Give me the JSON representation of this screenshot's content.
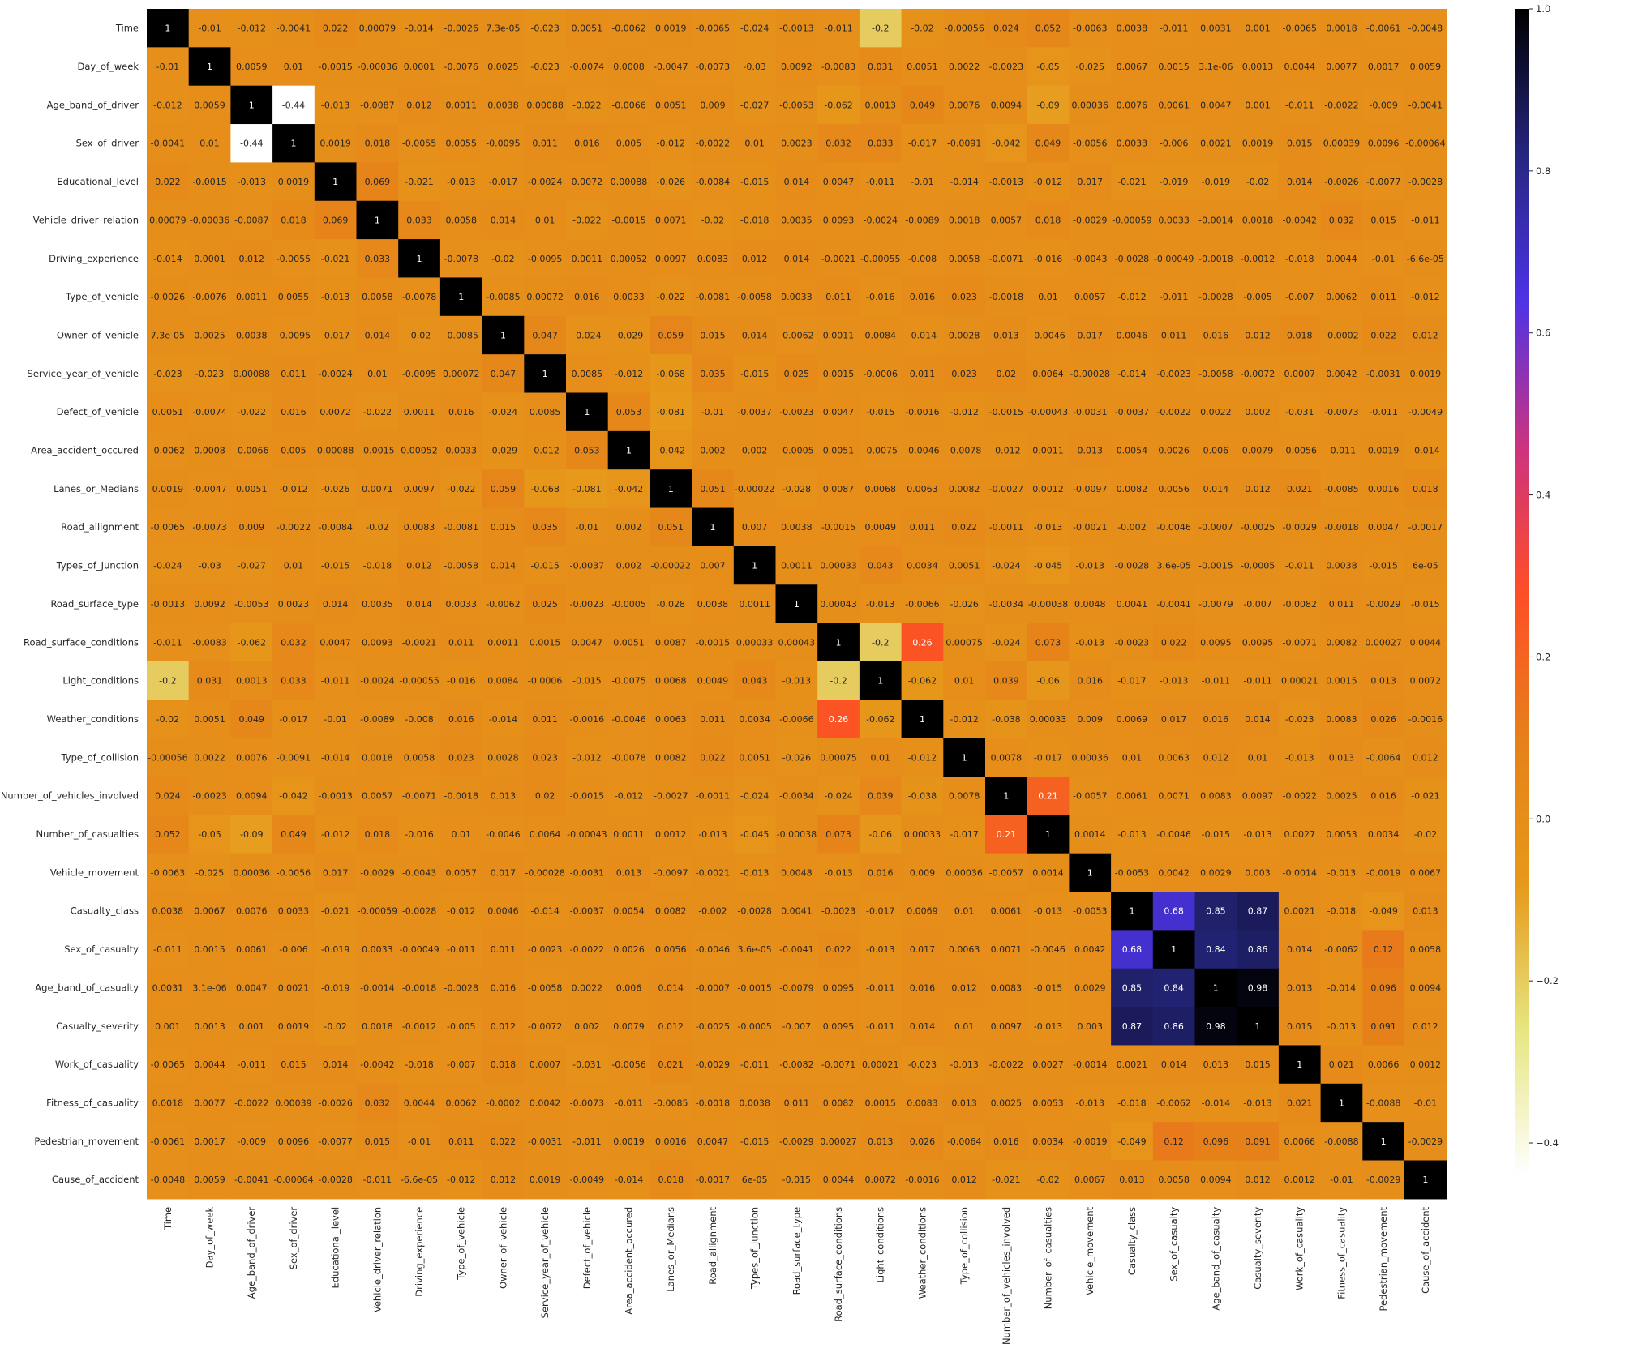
{
  "chart_data": {
    "type": "heatmap",
    "title": "",
    "xlabel": "",
    "ylabel": "",
    "labels": [
      "Time",
      "Day_of_week",
      "Age_band_of_driver",
      "Sex_of_driver",
      "Educational_level",
      "Vehicle_driver_relation",
      "Driving_experience",
      "Type_of_vehicle",
      "Owner_of_vehicle",
      "Service_year_of_vehicle",
      "Defect_of_vehicle",
      "Area_accident_occured",
      "Lanes_or_Medians",
      "Road_allignment",
      "Types_of_Junction",
      "Road_surface_type",
      "Road_surface_conditions",
      "Light_conditions",
      "Weather_conditions",
      "Type_of_collision",
      "Number_of_vehicles_involved",
      "Number_of_casualties",
      "Vehicle_movement",
      "Casualty_class",
      "Sex_of_casualty",
      "Age_band_of_casualty",
      "Casualty_severity",
      "Work_of_casuality",
      "Fitness_of_casuality",
      "Pedestrian_movement",
      "Cause_of_accident"
    ],
    "matrix": [
      [
        "1",
        "-0.01",
        "-0.012",
        "-0.0041",
        "0.022",
        "0.00079",
        "-0.014",
        "-0.0026",
        "7.3e-05",
        "-0.023",
        "0.0051",
        "-0.0062",
        "0.0019",
        "-0.0065",
        "-0.024",
        "-0.0013",
        "-0.011",
        "-0.2",
        "-0.02",
        "-0.00056",
        "0.024",
        "0.052",
        "-0.0063",
        "0.0038",
        "-0.011",
        "0.0031",
        "0.001",
        "-0.0065",
        "0.0018",
        "-0.0061",
        "-0.0048"
      ],
      [
        "-0.01",
        "1",
        "0.0059",
        "0.01",
        "-0.0015",
        "-0.00036",
        "0.0001",
        "-0.0076",
        "0.0025",
        "-0.023",
        "-0.0074",
        "0.0008",
        "-0.0047",
        "-0.0073",
        "-0.03",
        "0.0092",
        "-0.0083",
        "0.031",
        "0.0051",
        "0.0022",
        "-0.0023",
        "-0.05",
        "-0.025",
        "0.0067",
        "0.0015",
        "3.1e-06",
        "0.0013",
        "0.0044",
        "0.0077",
        "0.0017",
        "0.0059"
      ],
      [
        "-0.012",
        "0.0059",
        "1",
        "-0.44",
        "-0.013",
        "-0.0087",
        "0.012",
        "0.0011",
        "0.0038",
        "0.00088",
        "-0.022",
        "-0.0066",
        "0.0051",
        "0.009",
        "-0.027",
        "-0.0053",
        "-0.062",
        "0.0013",
        "0.049",
        "0.0076",
        "0.0094",
        "-0.09",
        "0.00036",
        "0.0076",
        "0.0061",
        "0.0047",
        "0.001",
        "-0.011",
        "-0.0022",
        "-0.009",
        "-0.0041"
      ],
      [
        "-0.0041",
        "0.01",
        "-0.44",
        "1",
        "0.0019",
        "0.018",
        "-0.0055",
        "0.0055",
        "-0.0095",
        "0.011",
        "0.016",
        "0.005",
        "-0.012",
        "-0.0022",
        "0.01",
        "0.0023",
        "0.032",
        "0.033",
        "-0.017",
        "-0.0091",
        "-0.042",
        "0.049",
        "-0.0056",
        "0.0033",
        "-0.006",
        "0.0021",
        "0.0019",
        "0.015",
        "0.00039",
        "0.0096",
        "-0.00064"
      ],
      [
        "0.022",
        "-0.0015",
        "-0.013",
        "0.0019",
        "1",
        "0.069",
        "-0.021",
        "-0.013",
        "-0.017",
        "-0.0024",
        "0.0072",
        "0.00088",
        "-0.026",
        "-0.0084",
        "-0.015",
        "0.014",
        "0.0047",
        "-0.011",
        "-0.01",
        "-0.014",
        "-0.0013",
        "-0.012",
        "0.017",
        "-0.021",
        "-0.019",
        "-0.019",
        "-0.02",
        "0.014",
        "-0.0026",
        "-0.0077",
        "-0.0028"
      ],
      [
        "0.00079",
        "-0.00036",
        "-0.0087",
        "0.018",
        "0.069",
        "1",
        "0.033",
        "0.0058",
        "0.014",
        "0.01",
        "-0.022",
        "-0.0015",
        "0.0071",
        "-0.02",
        "-0.018",
        "0.0035",
        "0.0093",
        "-0.0024",
        "-0.0089",
        "0.0018",
        "0.0057",
        "0.018",
        "-0.0029",
        "-0.00059",
        "0.0033",
        "-0.0014",
        "0.0018",
        "-0.0042",
        "0.032",
        "0.015",
        "-0.011"
      ],
      [
        "-0.014",
        "0.0001",
        "0.012",
        "-0.0055",
        "-0.021",
        "0.033",
        "1",
        "-0.0078",
        "-0.02",
        "-0.0095",
        "0.0011",
        "0.00052",
        "0.0097",
        "0.0083",
        "0.012",
        "0.014",
        "-0.0021",
        "-0.00055",
        "-0.008",
        "0.0058",
        "-0.0071",
        "-0.016",
        "-0.0043",
        "-0.0028",
        "-0.00049",
        "-0.0018",
        "-0.0012",
        "-0.018",
        "0.0044",
        "-0.01",
        "-6.6e-05"
      ],
      [
        "-0.0026",
        "-0.0076",
        "0.0011",
        "0.0055",
        "-0.013",
        "0.0058",
        "-0.0078",
        "1",
        "-0.0085",
        "0.00072",
        "0.016",
        "0.0033",
        "-0.022",
        "-0.0081",
        "-0.0058",
        "0.0033",
        "0.011",
        "-0.016",
        "0.016",
        "0.023",
        "-0.0018",
        "0.01",
        "0.0057",
        "-0.012",
        "-0.011",
        "-0.0028",
        "-0.005",
        "-0.007",
        "0.0062",
        "0.011",
        "-0.012"
      ],
      [
        "7.3e-05",
        "0.0025",
        "0.0038",
        "-0.0095",
        "-0.017",
        "0.014",
        "-0.02",
        "-0.0085",
        "1",
        "0.047",
        "-0.024",
        "-0.029",
        "0.059",
        "0.015",
        "0.014",
        "-0.0062",
        "0.0011",
        "0.0084",
        "-0.014",
        "0.0028",
        "0.013",
        "-0.0046",
        "0.017",
        "0.0046",
        "0.011",
        "0.016",
        "0.012",
        "0.018",
        "-0.0002",
        "0.022",
        "0.012"
      ],
      [
        "-0.023",
        "-0.023",
        "0.00088",
        "0.011",
        "-0.0024",
        "0.01",
        "-0.0095",
        "0.00072",
        "0.047",
        "1",
        "0.0085",
        "-0.012",
        "-0.068",
        "0.035",
        "-0.015",
        "0.025",
        "0.0015",
        "-0.0006",
        "0.011",
        "0.023",
        "0.02",
        "0.0064",
        "-0.00028",
        "-0.014",
        "-0.0023",
        "-0.0058",
        "-0.0072",
        "0.0007",
        "0.0042",
        "-0.0031",
        "0.0019"
      ],
      [
        "0.0051",
        "-0.0074",
        "-0.022",
        "0.016",
        "0.0072",
        "-0.022",
        "0.0011",
        "0.016",
        "-0.024",
        "0.0085",
        "1",
        "0.053",
        "-0.081",
        "-0.01",
        "-0.0037",
        "-0.0023",
        "0.0047",
        "-0.015",
        "-0.0016",
        "-0.012",
        "-0.0015",
        "-0.00043",
        "-0.0031",
        "-0.0037",
        "-0.0022",
        "0.0022",
        "0.002",
        "-0.031",
        "-0.0073",
        "-0.011",
        "-0.0049"
      ],
      [
        "-0.0062",
        "0.0008",
        "-0.0066",
        "0.005",
        "0.00088",
        "-0.0015",
        "0.00052",
        "0.0033",
        "-0.029",
        "-0.012",
        "0.053",
        "1",
        "-0.042",
        "0.002",
        "0.002",
        "-0.0005",
        "0.0051",
        "-0.0075",
        "-0.0046",
        "-0.0078",
        "-0.012",
        "0.0011",
        "0.013",
        "0.0054",
        "0.0026",
        "0.006",
        "0.0079",
        "-0.0056",
        "-0.011",
        "0.0019",
        "-0.014"
      ],
      [
        "0.0019",
        "-0.0047",
        "0.0051",
        "-0.012",
        "-0.026",
        "0.0071",
        "0.0097",
        "-0.022",
        "0.059",
        "-0.068",
        "-0.081",
        "-0.042",
        "1",
        "0.051",
        "-0.00022",
        "-0.028",
        "0.0087",
        "0.0068",
        "0.0063",
        "0.0082",
        "-0.0027",
        "0.0012",
        "-0.0097",
        "0.0082",
        "0.0056",
        "0.014",
        "0.012",
        "0.021",
        "-0.0085",
        "0.0016",
        "0.018"
      ],
      [
        "-0.0065",
        "-0.0073",
        "0.009",
        "-0.0022",
        "-0.0084",
        "-0.02",
        "0.0083",
        "-0.0081",
        "0.015",
        "0.035",
        "-0.01",
        "0.002",
        "0.051",
        "1",
        "0.007",
        "0.0038",
        "-0.0015",
        "0.0049",
        "0.011",
        "0.022",
        "-0.0011",
        "-0.013",
        "-0.0021",
        "-0.002",
        "-0.0046",
        "-0.0007",
        "-0.0025",
        "-0.0029",
        "-0.0018",
        "0.0047",
        "-0.0017"
      ],
      [
        "-0.024",
        "-0.03",
        "-0.027",
        "0.01",
        "-0.015",
        "-0.018",
        "0.012",
        "-0.0058",
        "0.014",
        "-0.015",
        "-0.0037",
        "0.002",
        "-0.00022",
        "0.007",
        "1",
        "0.0011",
        "0.00033",
        "0.043",
        "0.0034",
        "0.0051",
        "-0.024",
        "-0.045",
        "-0.013",
        "-0.0028",
        "3.6e-05",
        "-0.0015",
        "-0.0005",
        "-0.011",
        "0.0038",
        "-0.015",
        "6e-05"
      ],
      [
        "-0.0013",
        "0.0092",
        "-0.0053",
        "0.0023",
        "0.014",
        "0.0035",
        "0.014",
        "0.0033",
        "-0.0062",
        "0.025",
        "-0.0023",
        "-0.0005",
        "-0.028",
        "0.0038",
        "0.0011",
        "1",
        "0.00043",
        "-0.013",
        "-0.0066",
        "-0.026",
        "-0.0034",
        "-0.00038",
        "0.0048",
        "0.0041",
        "-0.0041",
        "-0.0079",
        "-0.007",
        "-0.0082",
        "0.011",
        "-0.0029",
        "-0.015"
      ],
      [
        "-0.011",
        "-0.0083",
        "-0.062",
        "0.032",
        "0.0047",
        "0.0093",
        "-0.0021",
        "0.011",
        "0.0011",
        "0.0015",
        "0.0047",
        "0.0051",
        "0.0087",
        "-0.0015",
        "0.00033",
        "0.00043",
        "1",
        "-0.2",
        "0.26",
        "0.00075",
        "-0.024",
        "0.073",
        "-0.013",
        "-0.0023",
        "0.022",
        "0.0095",
        "0.0095",
        "-0.0071",
        "0.0082",
        "0.00027",
        "0.0044"
      ],
      [
        "-0.2",
        "0.031",
        "0.0013",
        "0.033",
        "-0.011",
        "-0.0024",
        "-0.00055",
        "-0.016",
        "0.0084",
        "-0.0006",
        "-0.015",
        "-0.0075",
        "0.0068",
        "0.0049",
        "0.043",
        "-0.013",
        "-0.2",
        "1",
        "-0.062",
        "0.01",
        "0.039",
        "-0.06",
        "0.016",
        "-0.017",
        "-0.013",
        "-0.011",
        "-0.011",
        "0.00021",
        "0.0015",
        "0.013",
        "0.0072"
      ],
      [
        "-0.02",
        "0.0051",
        "0.049",
        "-0.017",
        "-0.01",
        "-0.0089",
        "-0.008",
        "0.016",
        "-0.014",
        "0.011",
        "-0.0016",
        "-0.0046",
        "0.0063",
        "0.011",
        "0.0034",
        "-0.0066",
        "0.26",
        "-0.062",
        "1",
        "-0.012",
        "-0.038",
        "0.00033",
        "0.009",
        "0.0069",
        "0.017",
        "0.016",
        "0.014",
        "-0.023",
        "0.0083",
        "0.026",
        "-0.0016"
      ],
      [
        "-0.00056",
        "0.0022",
        "0.0076",
        "-0.0091",
        "-0.014",
        "0.0018",
        "0.0058",
        "0.023",
        "0.0028",
        "0.023",
        "-0.012",
        "-0.0078",
        "0.0082",
        "0.022",
        "0.0051",
        "-0.026",
        "0.00075",
        "0.01",
        "-0.012",
        "1",
        "0.0078",
        "-0.017",
        "0.00036",
        "0.01",
        "0.0063",
        "0.012",
        "0.01",
        "-0.013",
        "0.013",
        "-0.0064",
        "0.012"
      ],
      [
        "0.024",
        "-0.0023",
        "0.0094",
        "-0.042",
        "-0.0013",
        "0.0057",
        "-0.0071",
        "-0.0018",
        "0.013",
        "0.02",
        "-0.0015",
        "-0.012",
        "-0.0027",
        "-0.0011",
        "-0.024",
        "-0.0034",
        "-0.024",
        "0.039",
        "-0.038",
        "0.0078",
        "1",
        "0.21",
        "-0.0057",
        "0.0061",
        "0.0071",
        "0.0083",
        "0.0097",
        "-0.0022",
        "0.0025",
        "0.016",
        "-0.021"
      ],
      [
        "0.052",
        "-0.05",
        "-0.09",
        "0.049",
        "-0.012",
        "0.018",
        "-0.016",
        "0.01",
        "-0.0046",
        "0.0064",
        "-0.00043",
        "0.0011",
        "0.0012",
        "-0.013",
        "-0.045",
        "-0.00038",
        "0.073",
        "-0.06",
        "0.00033",
        "-0.017",
        "0.21",
        "1",
        "0.0014",
        "-0.013",
        "-0.0046",
        "-0.015",
        "-0.013",
        "0.0027",
        "0.0053",
        "0.0034",
        "-0.02"
      ],
      [
        "-0.0063",
        "-0.025",
        "0.00036",
        "-0.0056",
        "0.017",
        "-0.0029",
        "-0.0043",
        "0.0057",
        "0.017",
        "-0.00028",
        "-0.0031",
        "0.013",
        "-0.0097",
        "-0.0021",
        "-0.013",
        "0.0048",
        "-0.013",
        "0.016",
        "0.009",
        "0.00036",
        "-0.0057",
        "0.0014",
        "1",
        "-0.0053",
        "0.0042",
        "0.0029",
        "0.003",
        "-0.0014",
        "-0.013",
        "-0.0019",
        "0.0067"
      ],
      [
        "0.0038",
        "0.0067",
        "0.0076",
        "0.0033",
        "-0.021",
        "-0.00059",
        "-0.0028",
        "-0.012",
        "0.0046",
        "-0.014",
        "-0.0037",
        "0.0054",
        "0.0082",
        "-0.002",
        "-0.0028",
        "0.0041",
        "-0.0023",
        "-0.017",
        "0.0069",
        "0.01",
        "0.0061",
        "-0.013",
        "-0.0053",
        "1",
        "0.68",
        "0.85",
        "0.87",
        "0.0021",
        "-0.018",
        "-0.049",
        "0.013"
      ],
      [
        "-0.011",
        "0.0015",
        "0.0061",
        "-0.006",
        "-0.019",
        "0.0033",
        "-0.00049",
        "-0.011",
        "0.011",
        "-0.0023",
        "-0.0022",
        "0.0026",
        "0.0056",
        "-0.0046",
        "3.6e-05",
        "-0.0041",
        "0.022",
        "-0.013",
        "0.017",
        "0.0063",
        "0.0071",
        "-0.0046",
        "0.0042",
        "0.68",
        "1",
        "0.84",
        "0.86",
        "0.014",
        "-0.0062",
        "0.12",
        "0.0058"
      ],
      [
        "0.0031",
        "3.1e-06",
        "0.0047",
        "0.0021",
        "-0.019",
        "-0.0014",
        "-0.0018",
        "-0.0028",
        "0.016",
        "-0.0058",
        "0.0022",
        "0.006",
        "0.014",
        "-0.0007",
        "-0.0015",
        "-0.0079",
        "0.0095",
        "-0.011",
        "0.016",
        "0.012",
        "0.0083",
        "-0.015",
        "0.0029",
        "0.85",
        "0.84",
        "1",
        "0.98",
        "0.013",
        "-0.014",
        "0.096",
        "0.0094"
      ],
      [
        "0.001",
        "0.0013",
        "0.001",
        "0.0019",
        "-0.02",
        "0.0018",
        "-0.0012",
        "-0.005",
        "0.012",
        "-0.0072",
        "0.002",
        "0.0079",
        "0.012",
        "-0.0025",
        "-0.0005",
        "-0.007",
        "0.0095",
        "-0.011",
        "0.014",
        "0.01",
        "0.0097",
        "-0.013",
        "0.003",
        "0.87",
        "0.86",
        "0.98",
        "1",
        "0.015",
        "-0.013",
        "0.091",
        "0.012"
      ],
      [
        "-0.0065",
        "0.0044",
        "-0.011",
        "0.015",
        "0.014",
        "-0.0042",
        "-0.018",
        "-0.007",
        "0.018",
        "0.0007",
        "-0.031",
        "-0.0056",
        "0.021",
        "-0.0029",
        "-0.011",
        "-0.0082",
        "-0.0071",
        "0.00021",
        "-0.023",
        "-0.013",
        "-0.0022",
        "0.0027",
        "-0.0014",
        "0.0021",
        "0.014",
        "0.013",
        "0.015",
        "1",
        "0.021",
        "0.0066",
        "0.0012"
      ],
      [
        "0.0018",
        "0.0077",
        "-0.0022",
        "0.00039",
        "-0.0026",
        "0.032",
        "0.0044",
        "0.0062",
        "-0.0002",
        "0.0042",
        "-0.0073",
        "-0.011",
        "-0.0085",
        "-0.0018",
        "0.0038",
        "0.011",
        "0.0082",
        "0.0015",
        "0.0083",
        "0.013",
        "0.0025",
        "0.0053",
        "-0.013",
        "-0.018",
        "-0.0062",
        "-0.014",
        "-0.013",
        "0.021",
        "1",
        "-0.0088",
        "-0.01"
      ],
      [
        "-0.0061",
        "0.0017",
        "-0.009",
        "0.0096",
        "-0.0077",
        "0.015",
        "-0.01",
        "0.011",
        "0.022",
        "-0.0031",
        "-0.011",
        "0.0019",
        "0.0016",
        "0.0047",
        "-0.015",
        "-0.0029",
        "0.00027",
        "0.013",
        "0.026",
        "-0.0064",
        "0.016",
        "0.0034",
        "-0.0019",
        "-0.049",
        "0.12",
        "0.096",
        "0.091",
        "0.0066",
        "-0.0088",
        "1",
        "-0.0029"
      ],
      [
        "-0.0048",
        "0.0059",
        "-0.0041",
        "-0.00064",
        "-0.0028",
        "-0.011",
        "-6.6e-05",
        "-0.012",
        "0.012",
        "0.0019",
        "-0.0049",
        "-0.014",
        "0.018",
        "-0.0017",
        "6e-05",
        "-0.015",
        "0.0044",
        "0.0072",
        "-0.0016",
        "0.012",
        "-0.021",
        "-0.02",
        "0.0067",
        "0.013",
        "0.0058",
        "0.0094",
        "0.012",
        "0.0012",
        "-0.01",
        "-0.0029",
        "1"
      ]
    ],
    "colorbar": {
      "vmin": -0.44,
      "vmax": 1.0,
      "ticks": [
        1.0,
        0.8,
        0.6,
        0.4,
        0.2,
        0.0,
        -0.2,
        -0.4
      ],
      "tick_labels": [
        "1.0",
        "0.8",
        "0.6",
        "0.4",
        "0.2",
        "0.0",
        "−0.2",
        "−0.4"
      ]
    },
    "colormap": "CMRmap_r",
    "annotations": true,
    "grid": false,
    "legend": "colorbar right"
  }
}
